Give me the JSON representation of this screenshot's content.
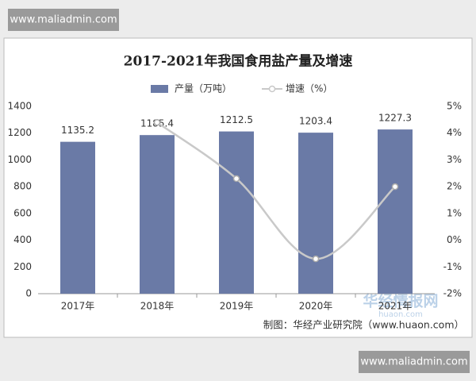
{
  "chart_data": {
    "type": "bar-line",
    "title": "2017-2021年我国食用盐产量及增速",
    "categories": [
      "2017年",
      "2018年",
      "2019年",
      "2020年",
      "2021年"
    ],
    "series": [
      {
        "name": "产量（万吨）",
        "type": "bar",
        "color": "#6a7aa6",
        "values": [
          1135.2,
          1185.4,
          1212.5,
          1203.4,
          1227.3
        ]
      },
      {
        "name": "增速（%）",
        "type": "line",
        "axis": "y2",
        "color": "#c9c9c9",
        "values": [
          null,
          4.4,
          2.3,
          -0.7,
          2.0
        ]
      }
    ],
    "ylim": [
      0,
      1400
    ],
    "yticks": [
      0,
      200,
      400,
      600,
      800,
      1000,
      1200,
      1400
    ],
    "y2lim": [
      -2,
      5
    ],
    "y2ticks": [
      {
        "value": -2,
        "label": "-2%"
      },
      {
        "value": -1,
        "label": "-1%"
      },
      {
        "value": 0,
        "label": "0%"
      },
      {
        "value": 1,
        "label": "1%"
      },
      {
        "value": 2,
        "label": "2%"
      },
      {
        "value": 3,
        "label": "3%"
      },
      {
        "value": 4,
        "label": "4%"
      },
      {
        "value": 5,
        "label": "5%"
      }
    ],
    "grid": false,
    "legend": "top",
    "source": "制图：华经产业研究院（www.huaon.com）"
  },
  "watermarks": {
    "top": "www.maliadmin.com",
    "bottom": "www.maliadmin.com",
    "logo": "华经情报网",
    "logo_sub": "huaon.com"
  }
}
